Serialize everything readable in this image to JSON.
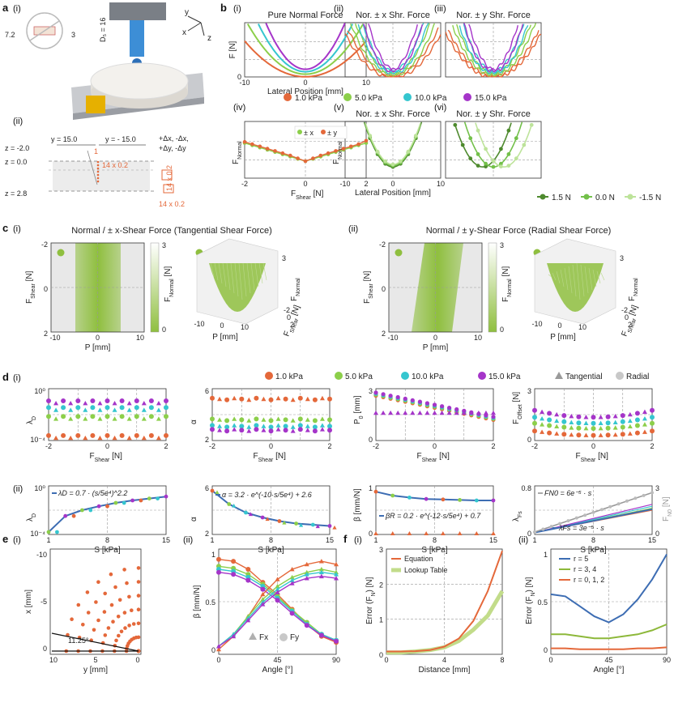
{
  "colors": {
    "p1": "#e4683a",
    "p5": "#8ccf4a",
    "p10": "#35c6cf",
    "p15": "#a535c9",
    "tang": "#9a9a9a",
    "rad": "#c8c8c8",
    "dg": "#4e8a2e",
    "mg": "#73c04a",
    "lg": "#bde39a",
    "field": "#8fbf3f",
    "eq": "#e4683a",
    "lut": "#c2dc8a",
    "r5": "#3d6db3",
    "r34": "#8db83a",
    "r012": "#e4683a",
    "fx": "#b0b0b0",
    "fy": "#c8c8c8"
  },
  "panel_labels": {
    "a": "a",
    "b": "b",
    "c": "c",
    "d": "d",
    "e": "e",
    "f": "f"
  },
  "sub_labels": {
    "i": "(i)",
    "ii": "(ii)",
    "iii": "(iii)",
    "iv": "(iv)",
    "v": "(v)",
    "vi": "(vi)"
  },
  "a_panel": {
    "dims": {
      "h": "7.2",
      "w": "3",
      "d5": "D₅ = 16"
    },
    "axes": {
      "x": "x",
      "y": "y",
      "z": "z"
    },
    "schematic": {
      "z_labels": [
        "z = -2.0",
        "z =  0.0",
        "z =  2.8"
      ],
      "y_left": "y = 15.0",
      "y_right": "y = - 15.0",
      "grid1": "14 x 0.2",
      "grid2": "14 x 0.2",
      "grid3": "14 x 0.2",
      "arrow_num": "1",
      "moves": [
        "+Δx, -Δx,",
        "+Δy, -Δy"
      ]
    }
  },
  "b_titles": [
    "Pure Normal Force",
    "Nor. ± x Shr. Force",
    "Nor. ± y Shr. Force",
    "",
    "Nor. ± x Shr. Force",
    "Nor. ± y Shr. Force"
  ],
  "b_axes": {
    "F": "F [N]",
    "FNormal": "F",
    "FNormal_sub": "Normal",
    "lat": "Lateral Position [mm]",
    "FShear": "F",
    "FShear_sub": "Shear",
    "FShear_unit": " [N]",
    "ticks_lat": [
      "-10",
      "0",
      "10"
    ],
    "ticks_F": [
      "0"
    ],
    "ticks_sh": [
      "-2",
      "0",
      "2"
    ]
  },
  "b_legend_pressure": [
    "1.0 kPa",
    "5.0 kPa",
    "10.0 kPa",
    "15.0 kPa"
  ],
  "b_legend_iv": [
    "± x",
    "± y"
  ],
  "b_legend_offset": [
    "1.5 N",
    "0.0 N",
    "-1.5 N"
  ],
  "c_panel": {
    "title_i": "Normal / ± x-Shear Force (Tangential Shear Force)",
    "title_ii": "Normal / ± y-Shear Force (Radial Shear Force)",
    "yaxis_FShear": "F",
    "yaxis_sub": "Shear",
    "yaxis_unit": " [N]",
    "xaxis": "P [mm]",
    "cbar": "F",
    "cbar_sub": "Normal",
    "cbar_unit": " [N]",
    "cbar_ticks": [
      "3",
      "0"
    ],
    "yticks": [
      "-2",
      "0",
      "2"
    ],
    "xticks": [
      "-10",
      "0",
      "10"
    ],
    "z3d": "F",
    "z3d_sub": "Normal",
    "z3d_tick": "3",
    "x3d": "P [mm]",
    "x3d_ticks": [
      "-10",
      "0",
      "10"
    ],
    "y3d": "F",
    "y3d_sub": "Shear",
    "y3d_unit": " [N]",
    "y3d_ticks": [
      "-2",
      "0",
      "2"
    ]
  },
  "d_legend": [
    "1.0 kPa",
    "5.0 kPa",
    "10.0 kPa",
    "15.0 kPa",
    "Tangential",
    "Radial"
  ],
  "d_row1_ylabels": [
    "λ",
    "α",
    "P",
    "F"
  ],
  "d_row1_ysubs": [
    "D",
    "",
    "0",
    "Offset"
  ],
  "d_row1_yunits": [
    "",
    "",
    " [mm]",
    " [N]"
  ],
  "d_row1_yticks": [
    [
      "10⁰",
      "10⁻⁴"
    ],
    [
      "6",
      "2"
    ],
    [
      "3",
      "0"
    ],
    [
      "3",
      "0"
    ]
  ],
  "d_row1_xlabel": {
    "main": "F",
    "sub": "Shear",
    "unit": " [N]",
    "ticks": [
      "-2",
      "0",
      "2"
    ]
  },
  "d_row2_ylabels": [
    "λ",
    "α",
    "β [mm/N]",
    "λ"
  ],
  "d_row2_ysubs": [
    "D",
    "",
    "",
    "Fs"
  ],
  "d_row2_yticks": [
    [
      "10⁰",
      "10⁻⁴"
    ],
    [
      "6",
      "2"
    ],
    [
      "1",
      "0"
    ],
    [
      "0.8",
      "0"
    ]
  ],
  "d_row2_xlabel": {
    "main": "S [kPa]",
    "ticks": [
      "1",
      "8",
      "15"
    ]
  },
  "d_formulas": [
    "λD = 0.7 · (s/5e⁴)^2.2",
    "α = 3.2 · e^(-10·s/5e⁴) + 2.6",
    "βR = 0.2 · e^(-12·s/5e⁴) + 0.7",
    "FN0 = 6e⁻⁵ · s",
    "λFs = 3e⁻⁵ · s"
  ],
  "d_right_axis": {
    "main": "F",
    "sub": "N0",
    "unit": " [N]",
    "ticks": [
      "3",
      "0"
    ]
  },
  "e_panel": {
    "xlabel": "y [mm]",
    "ylabel": "x [mm]",
    "xticks": [
      "10",
      "5",
      "0"
    ],
    "yticks": [
      "-10",
      "-5",
      "0"
    ],
    "angle": "11.25°",
    "ii_ylabel": "β [mm/N]",
    "ii_xlabel": "Angle [°]",
    "ii_xticks": [
      "0",
      "45",
      "90"
    ],
    "ii_yticks": [
      "1",
      "0.5",
      "0"
    ],
    "ii_legend": [
      "Fx",
      "Fy"
    ]
  },
  "f_panel": {
    "i_ylabel": "Error (F",
    "i_ysub": "N",
    "i_yunit": ") [N]",
    "i_xlabel": "Distance [mm]",
    "i_xticks": [
      "0",
      "4",
      "8"
    ],
    "i_yticks": [
      "3",
      "2",
      "1",
      "0"
    ],
    "i_legend": [
      "Equation",
      "Lookup Table"
    ],
    "ii_xlabel": "Angle [°]",
    "ii_xticks": [
      "0",
      "45",
      "90"
    ],
    "ii_yticks": [
      "1",
      "0.5",
      "0"
    ],
    "ii_legend": [
      "r = 5",
      "r = 3, 4",
      "r = 0, 1, 2"
    ]
  },
  "chart_data": [
    {
      "id": "b_i",
      "type": "line",
      "title": "Pure Normal Force",
      "xlabel": "Lateral Position [mm]",
      "ylabel": "F [N]",
      "xlim": [
        -10,
        10
      ],
      "ylim": [
        0,
        3
      ],
      "series": [
        {
          "name": "1.0 kPa",
          "a": 0.018,
          "b": 0.02
        },
        {
          "name": "5.0 kPa",
          "a": 0.028,
          "b": 0.4
        },
        {
          "name": "10.0 kPa",
          "a": 0.04,
          "b": 0.75
        },
        {
          "name": "15.0 kPa",
          "a": 0.055,
          "b": 1.1
        }
      ]
    },
    {
      "id": "b_iv",
      "type": "scatter",
      "xlabel": "F_Shear [N]",
      "ylabel": "F_Normal",
      "xlim": [
        -2,
        2
      ],
      "ylim": [
        0,
        1
      ],
      "x": [
        -2,
        -1.75,
        -1.5,
        -1.25,
        -1,
        -0.75,
        -0.5,
        -0.25,
        0,
        0.25,
        0.5,
        0.75,
        1,
        1.25,
        1.5,
        1.75,
        2
      ],
      "series": [
        {
          "name": "± x",
          "values": [
            0.62,
            0.58,
            0.54,
            0.5,
            0.46,
            0.42,
            0.38,
            0.34,
            0.3,
            0.34,
            0.38,
            0.42,
            0.46,
            0.5,
            0.54,
            0.58,
            0.62
          ]
        },
        {
          "name": "± y",
          "values": [
            0.64,
            0.6,
            0.56,
            0.52,
            0.48,
            0.44,
            0.4,
            0.35,
            0.3,
            0.35,
            0.4,
            0.44,
            0.48,
            0.52,
            0.56,
            0.6,
            0.66
          ]
        }
      ]
    },
    {
      "id": "d_row1",
      "type": "scatter",
      "xlabel": "F_Shear [N]",
      "categories": [
        "1.0 kPa",
        "5.0 kPa",
        "10.0 kPa",
        "15.0 kPa"
      ],
      "lambdaD_levels": [
        0.08,
        0.45,
        0.62,
        0.75
      ],
      "alpha_levels": [
        5.2,
        3.6,
        3.1,
        2.8
      ],
      "p0": {
        "radial_start": 2.6,
        "radial_end": 1.2,
        "tangential": 1.6
      },
      "foffset": {
        "base": [
          0.3,
          0.7,
          1.0,
          1.35
        ],
        "curv": [
          0.25,
          0.3,
          0.35,
          0.4
        ]
      }
    },
    {
      "id": "d_row2",
      "type": "line",
      "xlabel": "S [kPa]",
      "xlim": [
        1,
        15
      ],
      "lambdaD": {
        "x": [
          1,
          3,
          5,
          7,
          9,
          11,
          13,
          15
        ],
        "y": [
          0.05,
          0.38,
          0.5,
          0.58,
          0.65,
          0.7,
          0.74,
          0.78
        ]
      },
      "alpha": {
        "x": [
          1,
          3,
          5,
          7,
          9,
          11,
          13,
          15
        ],
        "y": [
          5.6,
          4.5,
          3.8,
          3.4,
          3.1,
          2.9,
          2.8,
          2.7
        ]
      },
      "beta_radial": {
        "x": [
          1,
          3,
          5,
          7,
          9,
          11,
          13,
          15
        ],
        "y": [
          0.88,
          0.8,
          0.76,
          0.73,
          0.72,
          0.71,
          0.7,
          0.7
        ]
      },
      "lambdaFs": {
        "x": [
          1,
          15
        ],
        "y": [
          0.04,
          0.5
        ]
      },
      "FN0": {
        "x": [
          1,
          15
        ],
        "y": [
          0.05,
          0.85
        ]
      }
    },
    {
      "id": "e_ii",
      "type": "line",
      "xlabel": "Angle [°]",
      "ylabel": "β [mm/N]",
      "xlim": [
        0,
        90
      ],
      "ylim": [
        0,
        1
      ],
      "x": [
        0,
        11.25,
        22.5,
        33.75,
        45,
        56.25,
        67.5,
        78.75,
        90
      ],
      "fy": [
        [
          0.95,
          0.93,
          0.85,
          0.72,
          0.6,
          0.45,
          0.3,
          0.18,
          0.12
        ],
        [
          0.88,
          0.86,
          0.8,
          0.7,
          0.58,
          0.44,
          0.32,
          0.2,
          0.14
        ],
        [
          0.85,
          0.83,
          0.77,
          0.68,
          0.56,
          0.43,
          0.3,
          0.2,
          0.14
        ],
        [
          0.82,
          0.8,
          0.74,
          0.65,
          0.54,
          0.41,
          0.29,
          0.19,
          0.13
        ]
      ],
      "fx": [
        [
          0.05,
          0.18,
          0.38,
          0.6,
          0.75,
          0.85,
          0.9,
          0.93,
          0.9
        ],
        [
          0.08,
          0.2,
          0.38,
          0.55,
          0.68,
          0.77,
          0.82,
          0.85,
          0.82
        ],
        [
          0.08,
          0.2,
          0.36,
          0.52,
          0.65,
          0.74,
          0.8,
          0.82,
          0.8
        ],
        [
          0.08,
          0.18,
          0.34,
          0.5,
          0.62,
          0.71,
          0.76,
          0.78,
          0.76
        ]
      ]
    },
    {
      "id": "f_i",
      "type": "line",
      "xlabel": "Distance [mm]",
      "ylabel": "Error (F_N) [N]",
      "xlim": [
        0,
        8
      ],
      "ylim": [
        0,
        3
      ],
      "x": [
        0,
        1,
        2,
        3,
        4,
        5,
        6,
        7,
        8
      ],
      "series": [
        {
          "name": "Equation",
          "values": [
            0.08,
            0.08,
            0.09,
            0.12,
            0.22,
            0.45,
            0.95,
            1.8,
            2.95
          ]
        },
        {
          "name": "Lookup Table",
          "values": [
            0.05,
            0.05,
            0.08,
            0.12,
            0.2,
            0.38,
            0.7,
            1.1,
            1.8
          ]
        }
      ]
    },
    {
      "id": "f_ii",
      "type": "line",
      "xlabel": "Angle [°]",
      "ylabel": "Error (F_N) [N]",
      "xlim": [
        0,
        90
      ],
      "ylim": [
        0,
        1
      ],
      "x": [
        0,
        11.25,
        22.5,
        33.75,
        45,
        56.25,
        67.5,
        78.75,
        90
      ],
      "series": [
        {
          "name": "r = 5",
          "values": [
            0.6,
            0.58,
            0.48,
            0.38,
            0.32,
            0.4,
            0.55,
            0.75,
            1.0
          ]
        },
        {
          "name": "r = 3, 4",
          "values": [
            0.2,
            0.2,
            0.18,
            0.16,
            0.16,
            0.18,
            0.2,
            0.24,
            0.3
          ]
        },
        {
          "name": "r = 0, 1, 2",
          "values": [
            0.06,
            0.06,
            0.05,
            0.05,
            0.05,
            0.05,
            0.06,
            0.06,
            0.07
          ]
        }
      ]
    }
  ]
}
